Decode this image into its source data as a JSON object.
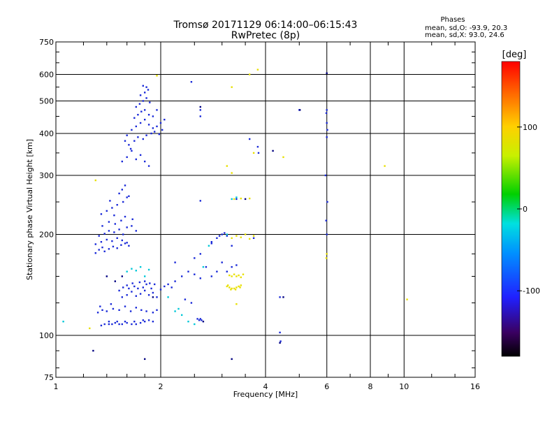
{
  "header": {
    "title": "Tromsø 20171129 06:14:00–06:15:43",
    "subtitle": "RwPretec (8p)"
  },
  "phases_box": {
    "heading": "Phases",
    "line_o": "mean, sd,O: -93.9, 20.3",
    "line_x": "mean, sd,X:  93.0, 24.6"
  },
  "colorbar": {
    "label": "[deg]",
    "ticks": [
      "100",
      "0",
      "-100"
    ],
    "tick_values": [
      100,
      0,
      -100
    ],
    "range": [
      -180,
      180
    ]
  },
  "chart_data": {
    "type": "scatter",
    "xlabel": "Frequency [MHz]",
    "ylabel": "Stationary phase Virtual Height [km]",
    "xscale": "log",
    "yscale": "log",
    "xlim": [
      1,
      16
    ],
    "ylim": [
      75,
      750
    ],
    "x_ticks": [
      1,
      2,
      4,
      6,
      8,
      10,
      16
    ],
    "x_tick_labels": [
      "1",
      "2",
      "4",
      "6",
      "8",
      "10",
      "16"
    ],
    "y_ticks": [
      75,
      100,
      200,
      300,
      400,
      500,
      600,
      750
    ],
    "y_tick_labels": [
      "75",
      "100",
      "200",
      "300",
      "400",
      "500",
      "600",
      "750"
    ],
    "grid": true,
    "colors": {
      "o_mode": "#1a2ad8",
      "x_mode": "#e8e000",
      "cyan": "#00c8d8",
      "dark": "#000080"
    },
    "series": [
      {
        "mode": "O",
        "points": [
          [
            1.35,
            107
          ],
          [
            1.38,
            108
          ],
          [
            1.42,
            108
          ],
          [
            1.45,
            108
          ],
          [
            1.48,
            109
          ],
          [
            1.52,
            108
          ],
          [
            1.55,
            108
          ],
          [
            1.6,
            109
          ],
          [
            1.65,
            108
          ],
          [
            1.7,
            108
          ],
          [
            1.75,
            109
          ],
          [
            1.8,
            110
          ],
          [
            1.85,
            111
          ],
          [
            1.9,
            110
          ],
          [
            1.42,
            110
          ],
          [
            1.5,
            110
          ],
          [
            1.58,
            110
          ],
          [
            1.68,
            110
          ],
          [
            1.78,
            111
          ],
          [
            1.32,
            117
          ],
          [
            1.36,
            119
          ],
          [
            1.4,
            118
          ],
          [
            1.46,
            120
          ],
          [
            1.52,
            119
          ],
          [
            1.58,
            122
          ],
          [
            1.64,
            118
          ],
          [
            1.7,
            121
          ],
          [
            1.76,
            119
          ],
          [
            1.82,
            118
          ],
          [
            1.9,
            117
          ],
          [
            1.95,
            119
          ],
          [
            1.34,
            122
          ],
          [
            1.44,
            124
          ],
          [
            1.55,
            130
          ],
          [
            1.6,
            132
          ],
          [
            1.65,
            135
          ],
          [
            1.7,
            131
          ],
          [
            1.75,
            133
          ],
          [
            1.8,
            136
          ],
          [
            1.85,
            132
          ],
          [
            1.9,
            134
          ],
          [
            1.95,
            130
          ],
          [
            1.62,
            138
          ],
          [
            1.68,
            140
          ],
          [
            1.72,
            138
          ],
          [
            1.78,
            139
          ],
          [
            1.82,
            142
          ],
          [
            1.88,
            138
          ],
          [
            1.52,
            136
          ],
          [
            1.56,
            139
          ],
          [
            1.6,
            141
          ],
          [
            1.66,
            143
          ],
          [
            1.74,
            144
          ],
          [
            1.8,
            145
          ],
          [
            1.86,
            143
          ],
          [
            1.92,
            142
          ],
          [
            2.0,
            137
          ],
          [
            1.3,
            176
          ],
          [
            1.33,
            180
          ],
          [
            1.36,
            183
          ],
          [
            1.38,
            178
          ],
          [
            1.42,
            181
          ],
          [
            1.46,
            184
          ],
          [
            1.5,
            182
          ],
          [
            1.54,
            186
          ],
          [
            1.58,
            188
          ],
          [
            1.62,
            185
          ],
          [
            1.3,
            187
          ],
          [
            1.35,
            190
          ],
          [
            1.4,
            193
          ],
          [
            1.45,
            191
          ],
          [
            1.5,
            195
          ],
          [
            1.55,
            192
          ],
          [
            1.6,
            189
          ],
          [
            1.33,
            198
          ],
          [
            1.38,
            201
          ],
          [
            1.42,
            205
          ],
          [
            1.47,
            203
          ],
          [
            1.52,
            207
          ],
          [
            1.56,
            200
          ],
          [
            1.6,
            210
          ],
          [
            1.65,
            212
          ],
          [
            1.7,
            205
          ],
          [
            1.36,
            212
          ],
          [
            1.42,
            218
          ],
          [
            1.48,
            215
          ],
          [
            1.54,
            220
          ],
          [
            1.58,
            226
          ],
          [
            1.35,
            230
          ],
          [
            1.4,
            235
          ],
          [
            1.45,
            240
          ],
          [
            1.5,
            245
          ],
          [
            1.56,
            250
          ],
          [
            1.6,
            258
          ],
          [
            1.52,
            265
          ],
          [
            1.55,
            272
          ],
          [
            1.58,
            280
          ],
          [
            1.62,
            260
          ],
          [
            1.47,
            228
          ],
          [
            1.43,
            252
          ],
          [
            1.66,
            222
          ],
          [
            1.55,
            330
          ],
          [
            1.6,
            340
          ],
          [
            1.65,
            355
          ],
          [
            1.7,
            335
          ],
          [
            1.75,
            345
          ],
          [
            1.8,
            330
          ],
          [
            1.85,
            320
          ],
          [
            1.62,
            370
          ],
          [
            1.68,
            380
          ],
          [
            1.72,
            390
          ],
          [
            1.78,
            385
          ],
          [
            1.82,
            395
          ],
          [
            1.88,
            400
          ],
          [
            1.92,
            405
          ],
          [
            1.98,
            398
          ],
          [
            2.02,
            410
          ],
          [
            1.6,
            395
          ],
          [
            1.65,
            410
          ],
          [
            1.7,
            420
          ],
          [
            1.75,
            430
          ],
          [
            1.8,
            440
          ],
          [
            1.85,
            425
          ],
          [
            1.9,
            415
          ],
          [
            1.95,
            420
          ],
          [
            2.0,
            430
          ],
          [
            1.68,
            445
          ],
          [
            1.72,
            455
          ],
          [
            1.76,
            465
          ],
          [
            1.8,
            470
          ],
          [
            1.85,
            455
          ],
          [
            1.9,
            450
          ],
          [
            1.7,
            480
          ],
          [
            1.74,
            490
          ],
          [
            1.78,
            500
          ],
          [
            1.82,
            510
          ],
          [
            1.86,
            495
          ],
          [
            1.75,
            520
          ],
          [
            1.8,
            530
          ],
          [
            1.84,
            540
          ],
          [
            1.78,
            555
          ],
          [
            1.82,
            550
          ],
          [
            1.95,
            470
          ],
          [
            1.58,
            380
          ],
          [
            1.64,
            360
          ],
          [
            2.05,
            140
          ],
          [
            2.1,
            142
          ],
          [
            2.15,
            139
          ],
          [
            2.2,
            145
          ],
          [
            2.3,
            150
          ],
          [
            2.4,
            155
          ],
          [
            2.5,
            152
          ],
          [
            2.6,
            148
          ],
          [
            2.7,
            160
          ],
          [
            2.8,
            150
          ],
          [
            2.9,
            155
          ],
          [
            3.0,
            165
          ],
          [
            3.1,
            155
          ],
          [
            3.2,
            160
          ],
          [
            3.3,
            162
          ],
          [
            2.2,
            165
          ],
          [
            2.5,
            170
          ],
          [
            2.6,
            175
          ],
          [
            2.55,
            112
          ],
          [
            2.58,
            111
          ],
          [
            2.6,
            112
          ],
          [
            2.62,
            111
          ],
          [
            2.35,
            128
          ],
          [
            2.45,
            125
          ],
          [
            2.8,
            190
          ],
          [
            2.9,
            195
          ],
          [
            2.95,
            198
          ],
          [
            3.0,
            200
          ],
          [
            3.05,
            202
          ],
          [
            3.1,
            198
          ],
          [
            2.8,
            188
          ],
          [
            3.2,
            185
          ],
          [
            3.7,
            195
          ],
          [
            3.8,
            365
          ],
          [
            3.82,
            350
          ],
          [
            3.6,
            385
          ],
          [
            3.3,
            255
          ],
          [
            2.6,
            252
          ],
          [
            2.6,
            470
          ],
          [
            2.6,
            450
          ],
          [
            2.45,
            570
          ],
          [
            2.05,
            440
          ],
          [
            4.4,
            130
          ],
          [
            4.4,
            102
          ],
          [
            4.42,
            96
          ],
          [
            5.0,
            470
          ],
          [
            6.0,
            470
          ],
          [
            5.98,
            460
          ],
          [
            6.0,
            430
          ],
          [
            6.02,
            410
          ],
          [
            6.0,
            390
          ],
          [
            5.95,
            300
          ],
          [
            6.02,
            250
          ],
          [
            5.97,
            220
          ],
          [
            6.0,
            200
          ]
        ]
      },
      {
        "mode": "X",
        "points": [
          [
            3.1,
            140
          ],
          [
            3.15,
            139
          ],
          [
            3.2,
            138
          ],
          [
            3.25,
            138
          ],
          [
            3.3,
            139
          ],
          [
            3.35,
            140
          ],
          [
            3.4,
            141
          ],
          [
            3.12,
            141
          ],
          [
            3.18,
            137
          ],
          [
            3.28,
            137
          ],
          [
            3.38,
            139
          ],
          [
            3.15,
            151
          ],
          [
            3.2,
            150
          ],
          [
            3.25,
            152
          ],
          [
            3.3,
            150
          ],
          [
            3.35,
            151
          ],
          [
            3.4,
            149
          ],
          [
            3.45,
            152
          ],
          [
            3.2,
            195
          ],
          [
            3.3,
            198
          ],
          [
            3.4,
            196
          ],
          [
            3.5,
            200
          ],
          [
            3.6,
            194
          ],
          [
            3.7,
            198
          ],
          [
            3.25,
            255
          ],
          [
            3.4,
            256
          ],
          [
            3.6,
            256
          ],
          [
            1.95,
            595
          ],
          [
            3.2,
            550
          ],
          [
            3.6,
            600
          ],
          [
            3.8,
            620
          ],
          [
            3.1,
            320
          ],
          [
            3.2,
            305
          ],
          [
            3.7,
            350
          ],
          [
            4.5,
            340
          ],
          [
            6.0,
            175
          ],
          [
            5.98,
            170
          ],
          [
            8.8,
            320
          ],
          [
            10.2,
            128
          ],
          [
            1.3,
            290
          ],
          [
            1.25,
            105
          ],
          [
            3.3,
            124
          ]
        ]
      },
      {
        "mode": "C",
        "points": [
          [
            1.6,
            155
          ],
          [
            1.65,
            158
          ],
          [
            1.7,
            156
          ],
          [
            1.75,
            160
          ],
          [
            1.8,
            150
          ],
          [
            1.85,
            157
          ],
          [
            2.1,
            130
          ],
          [
            2.2,
            118
          ],
          [
            2.25,
            120
          ],
          [
            2.3,
            115
          ],
          [
            2.4,
            110
          ],
          [
            2.5,
            108
          ],
          [
            2.65,
            160
          ],
          [
            2.75,
            185
          ],
          [
            3.1,
            200
          ],
          [
            3.2,
            255
          ],
          [
            3.3,
            258
          ],
          [
            1.05,
            110
          ]
        ]
      },
      {
        "mode": "D",
        "points": [
          [
            4.2,
            355
          ],
          [
            4.5,
            130
          ],
          [
            4.4,
            95
          ],
          [
            5.02,
            470
          ],
          [
            6.0,
            605
          ],
          [
            3.2,
            85
          ],
          [
            2.6,
            480
          ],
          [
            3.5,
            255
          ],
          [
            1.4,
            150
          ],
          [
            1.48,
            145
          ],
          [
            1.55,
            150
          ],
          [
            1.9,
            130
          ],
          [
            2.65,
            110
          ],
          [
            1.28,
            90
          ],
          [
            1.8,
            85
          ]
        ]
      }
    ]
  }
}
